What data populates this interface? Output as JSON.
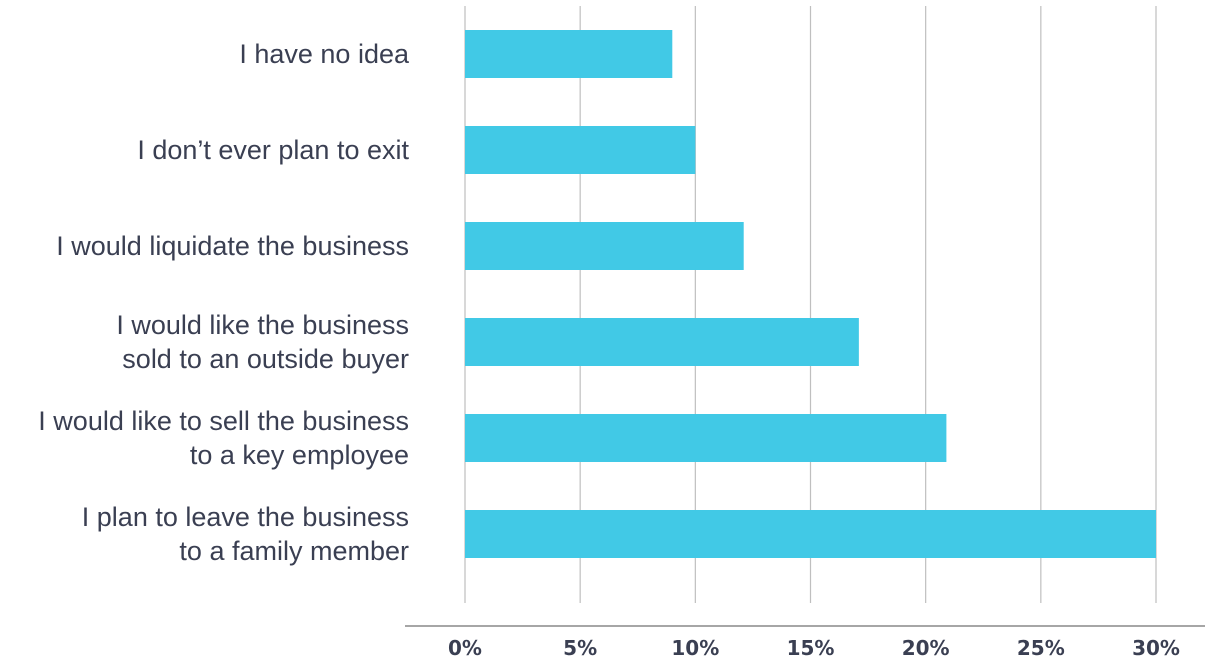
{
  "chart_data": {
    "type": "bar",
    "orientation": "horizontal",
    "title": "",
    "xlabel": "",
    "ylabel": "",
    "categories": [
      [
        "I have no idea"
      ],
      [
        "I don’t ever plan to exit"
      ],
      [
        "I would liquidate the business"
      ],
      [
        "I would like the business",
        "sold to an outside buyer"
      ],
      [
        "I would like to sell the business",
        "to a key employee"
      ],
      [
        "I plan to leave the business",
        "to a family member"
      ]
    ],
    "values": [
      9,
      10,
      12.1,
      17.1,
      20.9,
      30
    ],
    "xlim": [
      0,
      30
    ],
    "ticks": [
      0,
      5,
      10,
      15,
      20,
      25,
      30
    ],
    "tick_labels": [
      "0%",
      "5%",
      "10%",
      "15%",
      "20%",
      "25%",
      "30%"
    ],
    "vertical_grid": true,
    "legend": "none",
    "colors": {
      "bar": "#41c9e6",
      "grid": "#bfbfbf",
      "axis": "#a6a6a6",
      "text": "#3a3f52"
    }
  }
}
